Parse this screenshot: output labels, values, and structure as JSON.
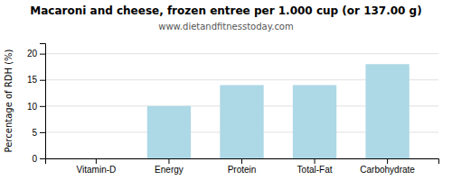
{
  "chart_data": {
    "type": "bar",
    "title": "Macaroni and cheese, frozen entree per 1.000 cup (or 137.00 g)",
    "subtitle": "www.dietandfitnesstoday.com",
    "categories": [
      "Vitamin-D",
      "Energy",
      "Protein",
      "Total-Fat",
      "Carbohydrate"
    ],
    "values": [
      0,
      10,
      14,
      14,
      18
    ],
    "color": "#add8e6",
    "ylabel": "Percentage of RDH (%)",
    "ylim": [
      0,
      22
    ],
    "yticks": [
      0,
      5,
      10,
      15,
      20
    ],
    "grid": true
  }
}
